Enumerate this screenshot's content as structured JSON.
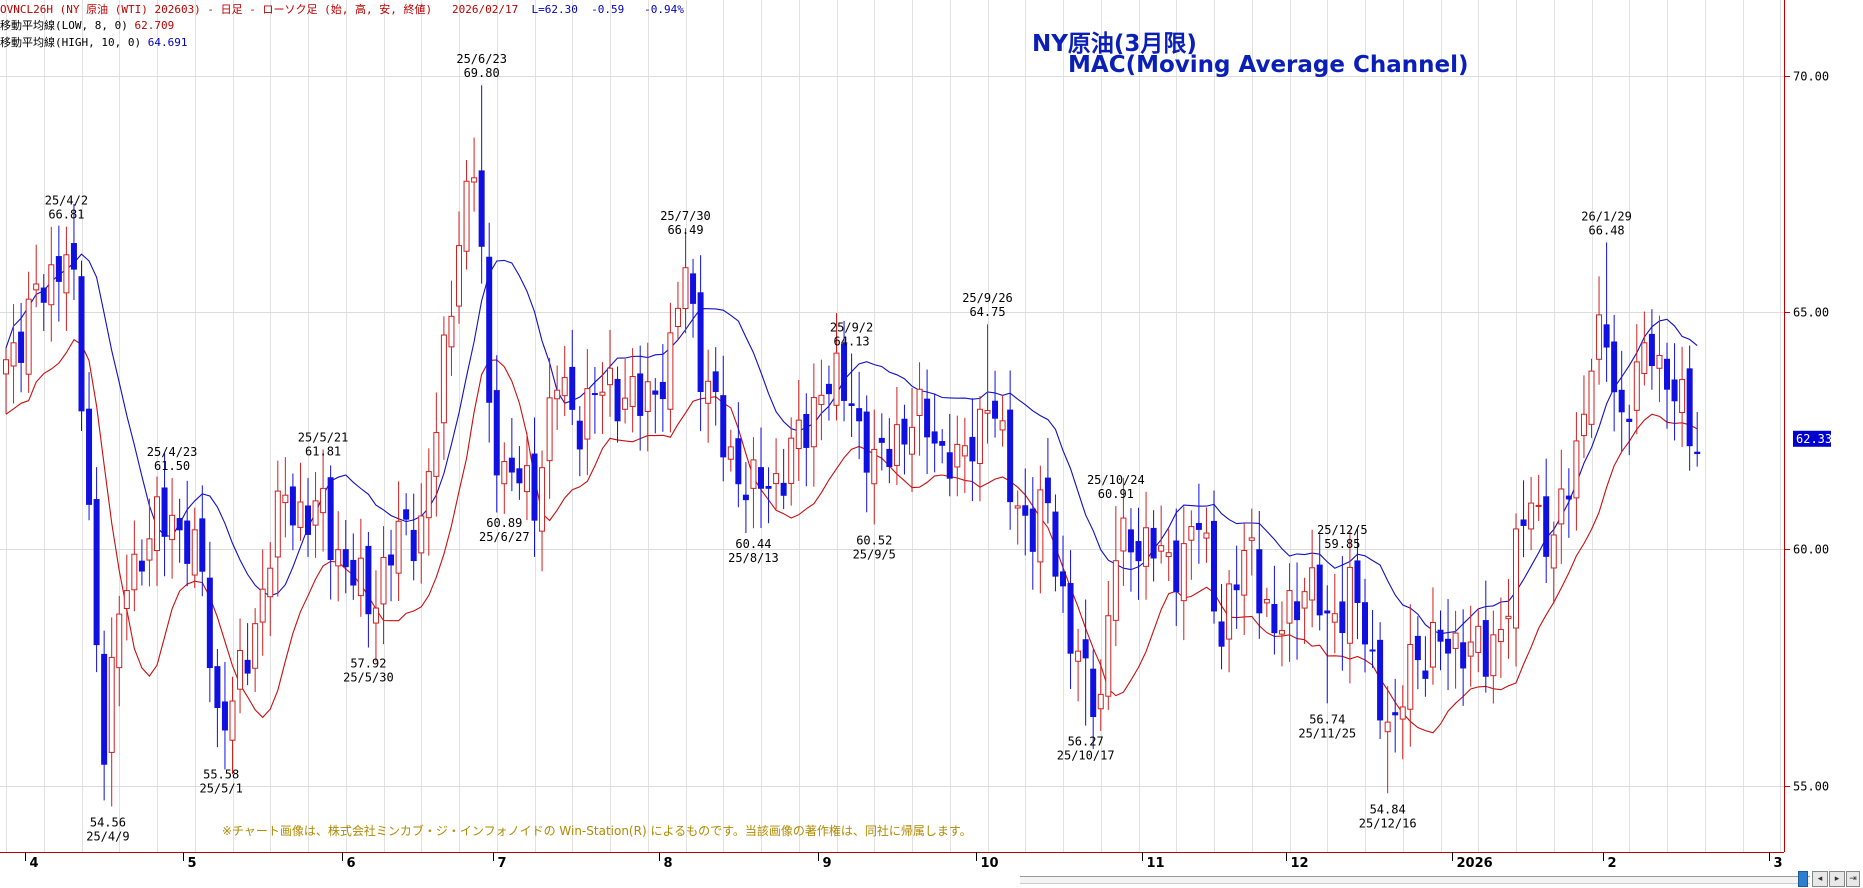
{
  "header": {
    "line1_symbol": "OVNCL26H (NY 原油 (WTI) 202603) - 日足 - ローソク足 (始, 高, 安, 終値)",
    "line1_date": "2026/02/17",
    "line1_last": "L=62.30",
    "line1_change": "-0.59",
    "line1_pct": "-0.94%",
    "ma_low_label": "移動平均線(LOW, 8, 0)",
    "ma_low_value": "62.709",
    "ma_high_label": "移動平均線(HIGH, 10, 0)",
    "ma_high_value": "64.691"
  },
  "title": {
    "line1": "NY原油(3月限)",
    "line2": "MAC(Moving Average Channel)"
  },
  "copyright": "※チャート画像は、株式会社ミンカブ・ジ・インフォノイドの Win-Station(R) によるものです。当該画像の著作権は、同社に帰属します。",
  "last_price_tag": "62.33",
  "colors": {
    "up_candle": "#d02020",
    "down_candle": "#1010e0",
    "ma_high": "#1010c8",
    "ma_low": "#c81010",
    "price_tag": "#0000d0"
  },
  "chart_data": {
    "type": "candlestick",
    "ylim": [
      53.6,
      71.6
    ],
    "y_ticks": [
      "70.00",
      "65.00",
      "60.00",
      "55.00"
    ],
    "y_tick_values": [
      70,
      65,
      60,
      55
    ],
    "x_ticks": [
      "4",
      "5",
      "6",
      "7",
      "8",
      "9",
      "10",
      "11",
      "12",
      "2026",
      "2",
      "3"
    ],
    "x_tick_days": [
      2.5,
      23.5,
      44.5,
      64.5,
      86.5,
      107.5,
      128.5,
      150.5,
      169.5,
      191.5,
      211.5,
      233.5
    ],
    "annotations": [
      {
        "day": 8,
        "price": 66.81,
        "date": "25/4/2",
        "value": "66.81",
        "pos": "above"
      },
      {
        "day": 13.5,
        "price": 54.56,
        "date": "25/4/9",
        "value": "54.56",
        "pos": "below"
      },
      {
        "day": 22,
        "price": 61.5,
        "date": "25/4/23",
        "value": "61.50",
        "pos": "above"
      },
      {
        "day": 28.5,
        "price": 55.58,
        "date": "25/5/1",
        "value": "55.58",
        "pos": "below"
      },
      {
        "day": 42,
        "price": 61.81,
        "date": "25/5/21",
        "value": "61.81",
        "pos": "above"
      },
      {
        "day": 48,
        "price": 57.92,
        "date": "25/5/30",
        "value": "57.92",
        "pos": "below"
      },
      {
        "day": 63,
        "price": 69.8,
        "date": "25/6/23",
        "value": "69.80",
        "pos": "above"
      },
      {
        "day": 66,
        "price": 60.89,
        "date": "25/6/27",
        "value": "60.89",
        "pos": "below"
      },
      {
        "day": 90,
        "price": 66.49,
        "date": "25/7/30",
        "value": "66.49",
        "pos": "above"
      },
      {
        "day": 99,
        "price": 60.44,
        "date": "25/8/13",
        "value": "60.44",
        "pos": "below"
      },
      {
        "day": 112,
        "price": 64.13,
        "date": "25/9/2",
        "value": "64.13",
        "pos": "above"
      },
      {
        "day": 115,
        "price": 60.52,
        "date": "25/9/5",
        "value": "60.52",
        "pos": "below"
      },
      {
        "day": 130,
        "price": 64.75,
        "date": "25/9/26",
        "value": "64.75",
        "pos": "above"
      },
      {
        "day": 147,
        "price": 60.91,
        "date": "25/10/24",
        "value": "60.91",
        "pos": "above"
      },
      {
        "day": 143,
        "price": 56.27,
        "date": "25/10/17",
        "value": "56.27",
        "pos": "below"
      },
      {
        "day": 175,
        "price": 56.74,
        "date": "25/11/25",
        "value": "56.74",
        "pos": "below"
      },
      {
        "day": 177,
        "price": 59.85,
        "date": "25/12/5",
        "value": "59.85",
        "pos": "above"
      },
      {
        "day": 183,
        "price": 54.84,
        "date": "25/12/16",
        "value": "54.84",
        "pos": "below"
      },
      {
        "day": 212,
        "price": 66.48,
        "date": "26/1/29",
        "value": "66.48",
        "pos": "above"
      }
    ],
    "anchors": [
      [
        0,
        64.0
      ],
      [
        5,
        65.5
      ],
      [
        8,
        66.4
      ],
      [
        9,
        65.2
      ],
      [
        11,
        61.0
      ],
      [
        12,
        58.0
      ],
      [
        13,
        56.0
      ],
      [
        16,
        59.5
      ],
      [
        19,
        60.2
      ],
      [
        22,
        60.8
      ],
      [
        26,
        59.4
      ],
      [
        28,
        56.5
      ],
      [
        30,
        56.6
      ],
      [
        33,
        58.5
      ],
      [
        37,
        61.2
      ],
      [
        40,
        60.6
      ],
      [
        42,
        60.8
      ],
      [
        45,
        59.6
      ],
      [
        48,
        58.9
      ],
      [
        52,
        60.2
      ],
      [
        55,
        60.6
      ],
      [
        57,
        62.5
      ],
      [
        60,
        66.8
      ],
      [
        62,
        68.0
      ],
      [
        63,
        66.0
      ],
      [
        64,
        63.0
      ],
      [
        66,
        61.6
      ],
      [
        70,
        61.2
      ],
      [
        73,
        63.5
      ],
      [
        76,
        62.8
      ],
      [
        80,
        63.5
      ],
      [
        84,
        63.0
      ],
      [
        88,
        64.0
      ],
      [
        90,
        66.0
      ],
      [
        92,
        64.0
      ],
      [
        95,
        62.2
      ],
      [
        99,
        61.2
      ],
      [
        102,
        61.5
      ],
      [
        106,
        62.5
      ],
      [
        108,
        63.6
      ],
      [
        112,
        63.2
      ],
      [
        115,
        61.6
      ],
      [
        118,
        62.5
      ],
      [
        122,
        62.7
      ],
      [
        126,
        61.6
      ],
      [
        130,
        63.2
      ],
      [
        133,
        61.5
      ],
      [
        136,
        60.2
      ],
      [
        138,
        61.0
      ],
      [
        141,
        58.0
      ],
      [
        143,
        57.2
      ],
      [
        145,
        57.0
      ],
      [
        147,
        59.9
      ],
      [
        150,
        60.3
      ],
      [
        154,
        59.6
      ],
      [
        158,
        60.5
      ],
      [
        161,
        58.4
      ],
      [
        165,
        60.1
      ],
      [
        168,
        58.0
      ],
      [
        172,
        59.4
      ],
      [
        175,
        58.4
      ],
      [
        178,
        59.2
      ],
      [
        182,
        57.0
      ],
      [
        184,
        55.9
      ],
      [
        186,
        57.8
      ],
      [
        190,
        57.9
      ],
      [
        193,
        58.1
      ],
      [
        196,
        57.6
      ],
      [
        199,
        59.0
      ],
      [
        202,
        61.2
      ],
      [
        205,
        60.0
      ],
      [
        208,
        62.2
      ],
      [
        210,
        64.0
      ],
      [
        212,
        64.4
      ],
      [
        214,
        62.8
      ],
      [
        216,
        63.5
      ],
      [
        218,
        64.4
      ],
      [
        221,
        63.2
      ],
      [
        223,
        62.5
      ],
      [
        224,
        62.3
      ]
    ]
  }
}
